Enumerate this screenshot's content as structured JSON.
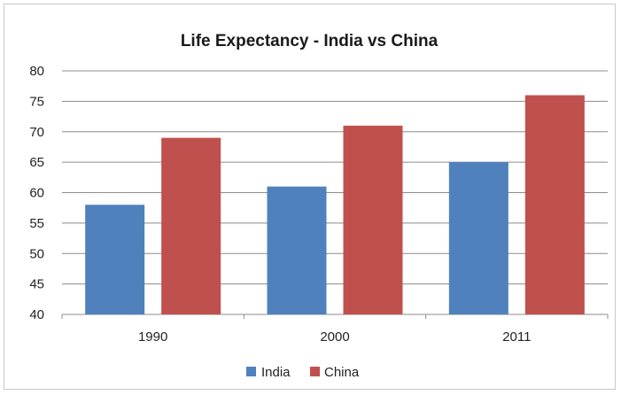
{
  "chart_data": {
    "type": "bar",
    "title": "Life Expectancy - India vs China",
    "xlabel": "",
    "ylabel": "",
    "categories": [
      "1990",
      "2000",
      "2011"
    ],
    "series": [
      {
        "name": "India",
        "color": "#4f81bd",
        "values": [
          58,
          61,
          65
        ]
      },
      {
        "name": "China",
        "color": "#c0504d",
        "values": [
          69,
          71,
          76
        ]
      }
    ],
    "ylim": [
      40,
      80
    ],
    "yticks": [
      "80",
      "75",
      "70",
      "65",
      "60",
      "55",
      "50",
      "45",
      "40"
    ],
    "grid": true,
    "legend_position": "bottom"
  }
}
